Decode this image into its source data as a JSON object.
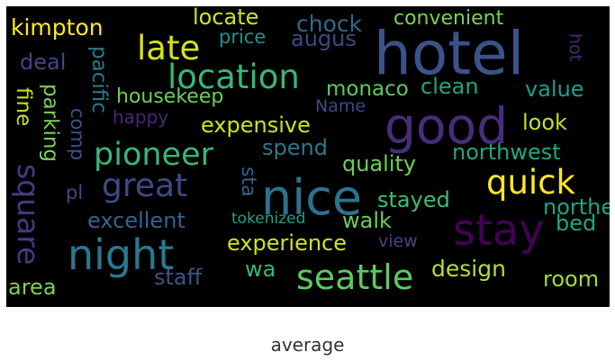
{
  "caption": "average",
  "background": "#000000",
  "words": [
    {
      "text": "hotel",
      "color": "#3b528b",
      "orient": "h"
    },
    {
      "text": "nice",
      "color": "#2c728e",
      "orient": "h"
    },
    {
      "text": "good",
      "color": "#472d7b",
      "orient": "h"
    },
    {
      "text": "stay",
      "color": "#440154",
      "orient": "h"
    },
    {
      "text": "night",
      "color": "#2a788e",
      "orient": "h"
    },
    {
      "text": "location",
      "color": "#35b779",
      "orient": "h"
    },
    {
      "text": "great",
      "color": "#3e4989",
      "orient": "h"
    },
    {
      "text": "pioneer",
      "color": "#35b779",
      "orient": "h"
    },
    {
      "text": "seattle",
      "color": "#5ec962",
      "orient": "h"
    },
    {
      "text": "quick",
      "color": "#fde725",
      "orient": "h"
    },
    {
      "text": "late",
      "color": "#d2e21b",
      "orient": "h"
    },
    {
      "text": "square",
      "color": "#443a83",
      "orient": "v"
    },
    {
      "text": "kimpton",
      "color": "#fde725",
      "orient": "h"
    },
    {
      "text": "locate",
      "color": "#d2e21b",
      "orient": "h"
    },
    {
      "text": "chock",
      "color": "#31688e",
      "orient": "h"
    },
    {
      "text": "convenient",
      "color": "#7ad151",
      "orient": "h"
    },
    {
      "text": "augus",
      "color": "#3e4989",
      "orient": "h"
    },
    {
      "text": "price",
      "color": "#21918c",
      "orient": "h"
    },
    {
      "text": "hot",
      "color": "#482878",
      "orient": "v"
    },
    {
      "text": "deal",
      "color": "#414487",
      "orient": "h"
    },
    {
      "text": "pacific",
      "color": "#2a788e",
      "orient": "v"
    },
    {
      "text": "parking",
      "color": "#7ad151",
      "orient": "v"
    },
    {
      "text": "fine",
      "color": "#bddf26",
      "orient": "v"
    },
    {
      "text": "comp",
      "color": "#3b528b",
      "orient": "v"
    },
    {
      "text": "housekeep",
      "color": "#6ece58",
      "orient": "h"
    },
    {
      "text": "monaco",
      "color": "#5ec962",
      "orient": "h"
    },
    {
      "text": "clean",
      "color": "#21a585",
      "orient": "h"
    },
    {
      "text": "value",
      "color": "#1f9e89",
      "orient": "h"
    },
    {
      "text": "happy",
      "color": "#482878",
      "orient": "h"
    },
    {
      "text": "Name",
      "color": "#3e4989",
      "orient": "h"
    },
    {
      "text": "expensive",
      "color": "#d2e21b",
      "orient": "h"
    },
    {
      "text": "look",
      "color": "#bddf26",
      "orient": "h"
    },
    {
      "text": "spend",
      "color": "#2a788e",
      "orient": "h"
    },
    {
      "text": "northwest",
      "color": "#21a585",
      "orient": "h"
    },
    {
      "text": "quality",
      "color": "#6ece58",
      "orient": "h"
    },
    {
      "text": "sta",
      "color": "#33638d",
      "orient": "v"
    },
    {
      "text": "pl",
      "color": "#3e4989",
      "orient": "h"
    },
    {
      "text": "stayed",
      "color": "#3fbc73",
      "orient": "h"
    },
    {
      "text": "northe",
      "color": "#20a486",
      "orient": "h"
    },
    {
      "text": "excellent",
      "color": "#33638d",
      "orient": "h"
    },
    {
      "text": "tokenized",
      "color": "#1fa188",
      "orient": "h"
    },
    {
      "text": "walk",
      "color": "#6ece58",
      "orient": "h"
    },
    {
      "text": "bed",
      "color": "#21a585",
      "orient": "h"
    },
    {
      "text": "experience",
      "color": "#d2e21b",
      "orient": "h"
    },
    {
      "text": "view",
      "color": "#414487",
      "orient": "h"
    },
    {
      "text": "wa",
      "color": "#35b779",
      "orient": "h"
    },
    {
      "text": "design",
      "color": "#b5de2b",
      "orient": "h"
    },
    {
      "text": "staff",
      "color": "#3b528b",
      "orient": "h"
    },
    {
      "text": "room",
      "color": "#a0da39",
      "orient": "h"
    },
    {
      "text": "area",
      "color": "#7ad151",
      "orient": "h"
    }
  ]
}
